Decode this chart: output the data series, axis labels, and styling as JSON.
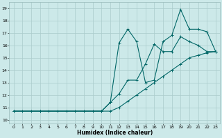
{
  "xlabel": "Humidex (Indice chaleur)",
  "bg_color": "#cce9e9",
  "grid_color": "#aacccc",
  "line_color": "#006666",
  "xlim": [
    -0.5,
    23.5
  ],
  "ylim": [
    9.7,
    19.5
  ],
  "xticks": [
    0,
    1,
    2,
    3,
    4,
    5,
    6,
    7,
    8,
    9,
    10,
    11,
    12,
    13,
    14,
    15,
    16,
    17,
    18,
    19,
    20,
    21,
    22,
    23
  ],
  "yticks": [
    10,
    11,
    12,
    13,
    14,
    15,
    16,
    17,
    18,
    19
  ],
  "line1_x": [
    0,
    1,
    2,
    3,
    4,
    5,
    6,
    7,
    8,
    9,
    10,
    11,
    12,
    13,
    14,
    15,
    16,
    17,
    18,
    19,
    20,
    21,
    22,
    23
  ],
  "line1_y": [
    10.7,
    10.7,
    10.7,
    10.7,
    10.7,
    10.7,
    10.7,
    10.7,
    10.7,
    10.7,
    10.7,
    10.7,
    11.0,
    11.5,
    12.0,
    12.5,
    13.0,
    13.5,
    14.0,
    14.5,
    15.0,
    15.2,
    15.4,
    15.5
  ],
  "line2_x": [
    0,
    3,
    10,
    11,
    12,
    13,
    14,
    15,
    16,
    17,
    18,
    19,
    20,
    21,
    22,
    23
  ],
  "line2_y": [
    10.7,
    10.7,
    10.7,
    11.4,
    16.2,
    17.3,
    16.3,
    13.0,
    13.2,
    16.3,
    16.8,
    18.9,
    17.3,
    17.3,
    17.1,
    15.5
  ],
  "line3_x": [
    0,
    3,
    10,
    11,
    12,
    13,
    14,
    15,
    16,
    17,
    18,
    19,
    20,
    21,
    22,
    23
  ],
  "line3_y": [
    10.7,
    10.7,
    10.7,
    11.4,
    12.1,
    13.2,
    13.2,
    14.5,
    16.1,
    15.5,
    15.5,
    16.7,
    16.3,
    16.0,
    15.5,
    15.5
  ]
}
